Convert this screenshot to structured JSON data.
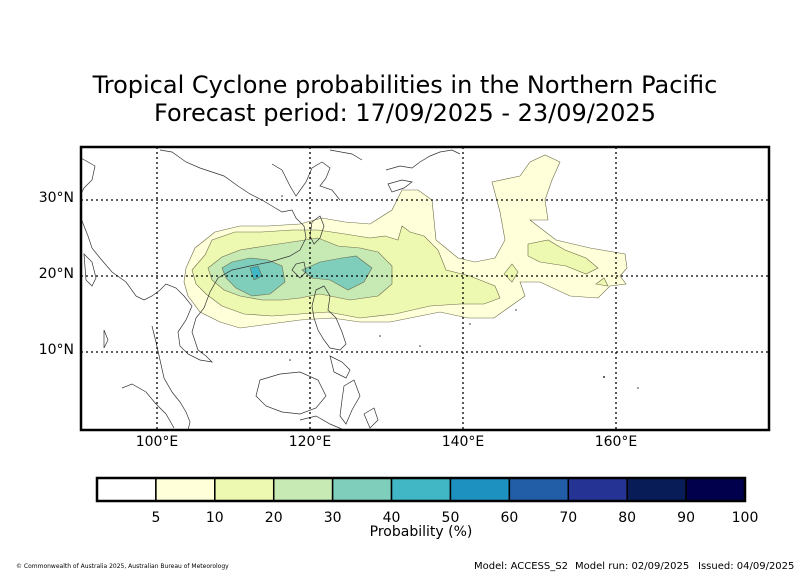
{
  "title": {
    "line1": "Tropical Cyclone probabilities in the Northern Pacific",
    "line2": "Forecast period: 17/09/2025 - 23/09/2025"
  },
  "map": {
    "lat_labels": [
      "30°N",
      "20°N",
      "10°N"
    ],
    "lon_labels": [
      "100°E",
      "120°E",
      "140°E",
      "160°E"
    ],
    "extent": {
      "lon_min": 90,
      "lon_max": 180,
      "lat_min": 0,
      "lat_max": 37
    }
  },
  "colorbar": {
    "label": "Probability (%)",
    "ticks": [
      "5",
      "10",
      "20",
      "30",
      "40",
      "50",
      "60",
      "70",
      "80",
      "90",
      "100"
    ],
    "colors": [
      "#ffffff",
      "#ffffd9",
      "#edf8b1",
      "#c7e9b4",
      "#7fcdbb",
      "#41b6c4",
      "#1d91c0",
      "#225ea8",
      "#253494",
      "#081d58",
      "#00004c"
    ]
  },
  "footer": {
    "copyright": "© Commonwealth of Australia 2025, Australian Bureau of Meteorology",
    "model": "Model: ACCESS_S2",
    "model_run": "Model run: 02/09/2025",
    "issued": "Issued: 04/09/2025"
  }
}
